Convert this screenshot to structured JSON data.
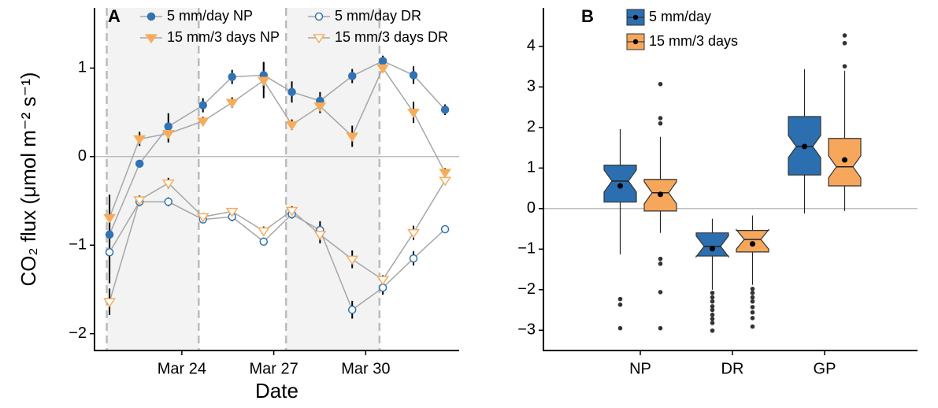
{
  "chart_data": [
    {
      "type": "line",
      "panel_label": "A",
      "x_label": "Date",
      "y_label": "CO₂ flux (μmol m⁻² s⁻¹)",
      "x": [
        21.64,
        22.62,
        23.56,
        24.69,
        25.64,
        26.67,
        27.59,
        28.51,
        29.56,
        30.56,
        31.56,
        32.59
      ],
      "xlim": [
        21.15,
        33.05
      ],
      "xticks": [
        {
          "value": 24,
          "label": "Mar 24"
        },
        {
          "value": 27,
          "label": "Mar 27"
        },
        {
          "value": 30,
          "label": "Mar 30"
        }
      ],
      "ylim": [
        -2.19,
        1.68
      ],
      "yticks": [
        {
          "value": -2,
          "label": "−2"
        },
        {
          "value": -1,
          "label": "−1"
        },
        0,
        1
      ],
      "hline": 0,
      "shaded_periods": [
        [
          21.55,
          24.55
        ],
        [
          27.4,
          30.45
        ]
      ],
      "line_color": "#a6a6a6",
      "series": [
        {
          "name": "5 mm/day NP",
          "color": "#3173b4",
          "marker": "circle",
          "filled": true,
          "values": [
            -0.88,
            -0.08,
            0.34,
            0.58,
            0.9,
            0.92,
            0.73,
            0.63,
            0.91,
            1.08,
            0.92,
            0.53
          ],
          "errors": [
            0.45,
            0.04,
            0.15,
            0.08,
            0.08,
            0.15,
            0.12,
            0.1,
            0.08,
            0.06,
            0.1,
            0.06
          ]
        },
        {
          "name": "15 mm/3 days NP",
          "color": "#f7ac5a",
          "marker": "triangle-down",
          "filled": true,
          "values": [
            -0.69,
            0.2,
            0.26,
            0.4,
            0.61,
            0.86,
            0.36,
            0.57,
            0.23,
            1.0,
            0.5,
            -0.18
          ],
          "errors": [
            0.1,
            0.08,
            0.1,
            0.05,
            0.06,
            0.2,
            0.06,
            0.08,
            0.12,
            0.05,
            0.12,
            0.05
          ]
        },
        {
          "name": "5 mm/day DR",
          "color": "#3173b4",
          "marker": "circle",
          "filled": false,
          "values": [
            -1.08,
            -0.51,
            -0.51,
            -0.71,
            -0.68,
            -0.96,
            -0.65,
            -0.83,
            -1.73,
            -1.48,
            -1.15,
            -0.82
          ],
          "errors": [
            0.35,
            0.05,
            0.05,
            0.04,
            0.05,
            0.04,
            0.05,
            0.1,
            0.1,
            0.08,
            0.08,
            0.04
          ]
        },
        {
          "name": "15 mm/3 days DR",
          "color": "#f7ac5a",
          "marker": "triangle-down",
          "filled": false,
          "values": [
            -1.64,
            -0.49,
            -0.3,
            -0.68,
            -0.62,
            -0.84,
            -0.61,
            -0.88,
            -1.16,
            -1.39,
            -0.86,
            -0.27
          ],
          "errors": [
            0.15,
            0.05,
            0.06,
            0.04,
            0.04,
            0.05,
            0.05,
            0.1,
            0.1,
            0.05,
            0.08,
            0.04
          ]
        }
      ]
    },
    {
      "type": "boxplot",
      "panel_label": "B",
      "categories": [
        "NP",
        "DR",
        "GP"
      ],
      "ylim": [
        -3.5,
        4.95
      ],
      "yticks": [
        {
          "value": -3,
          "label": "−3"
        },
        {
          "value": -2,
          "label": "−2"
        },
        {
          "value": -1,
          "label": "−1"
        },
        0,
        1,
        2,
        3,
        4
      ],
      "hline": 0,
      "series": [
        {
          "name": "5 mm/day",
          "color": "#2c6fb0",
          "boxes": [
            {
              "whisker_low": -1.13,
              "q1": 0.16,
              "median": 0.68,
              "q3": 1.07,
              "whisker_high": 1.96,
              "mean": 0.56,
              "outliers": [
                -2.23,
                -2.37,
                -2.95
              ]
            },
            {
              "whisker_low": -2.0,
              "q1": -1.17,
              "median": -0.93,
              "q3": -0.6,
              "whisker_high": -0.25,
              "mean": -0.99,
              "outliers": [
                -2.08,
                -2.19,
                -2.29,
                -2.41,
                -2.5,
                -2.62,
                -2.72,
                -2.82,
                -3.01
              ]
            },
            {
              "whisker_low": -0.12,
              "q1": 0.83,
              "median": 1.53,
              "q3": 2.27,
              "whisker_high": 3.44,
              "mean": 1.53,
              "outliers": []
            }
          ]
        },
        {
          "name": "15 mm/3 days",
          "color": "#f6a75c",
          "boxes": [
            {
              "whisker_low": -0.6,
              "q1": -0.06,
              "median": 0.39,
              "q3": 0.72,
              "whisker_high": 1.77,
              "mean": 0.35,
              "outliers": [
                3.07,
                2.23,
                2.1,
                -1.24,
                -1.36,
                -2.06,
                -2.95
              ]
            },
            {
              "whisker_low": -1.88,
              "q1": -1.07,
              "median": -0.76,
              "q3": -0.54,
              "whisker_high": -0.17,
              "mean": -0.87,
              "outliers": [
                -1.98,
                -2.08,
                -2.19,
                -2.29,
                -2.43,
                -2.56,
                -2.7,
                -2.91
              ]
            },
            {
              "whisker_low": -0.06,
              "q1": 0.56,
              "median": 1.03,
              "q3": 1.73,
              "whisker_high": 3.4,
              "mean": 1.2,
              "outliers": [
                4.27,
                4.08,
                3.51
              ]
            }
          ]
        }
      ]
    }
  ]
}
